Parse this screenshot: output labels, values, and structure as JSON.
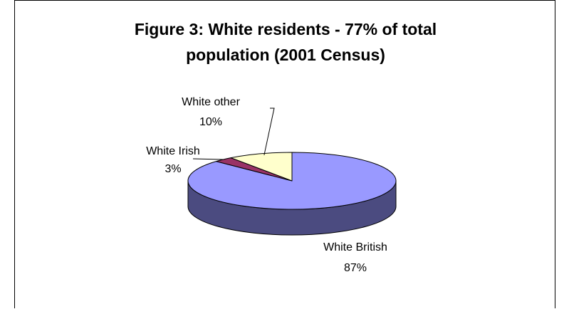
{
  "chart_data": {
    "type": "pie",
    "style": "3d",
    "title_lines": [
      "Figure 3: White residents - 77% of total",
      "population (2001 Census)"
    ],
    "slices": [
      {
        "name": "White British",
        "value": 87,
        "label": "87%",
        "color": "#9999ff",
        "side_color": "#4b4b80"
      },
      {
        "name": "White Irish",
        "value": 3,
        "label": "3%",
        "color": "#993366",
        "side_color": "#4c1933"
      },
      {
        "name": "White other",
        "value": 10,
        "label": "10%",
        "color": "#ffffcc",
        "side_color": "#80805f"
      }
    ],
    "legend": "none",
    "data_labels": "category-and-percent"
  }
}
